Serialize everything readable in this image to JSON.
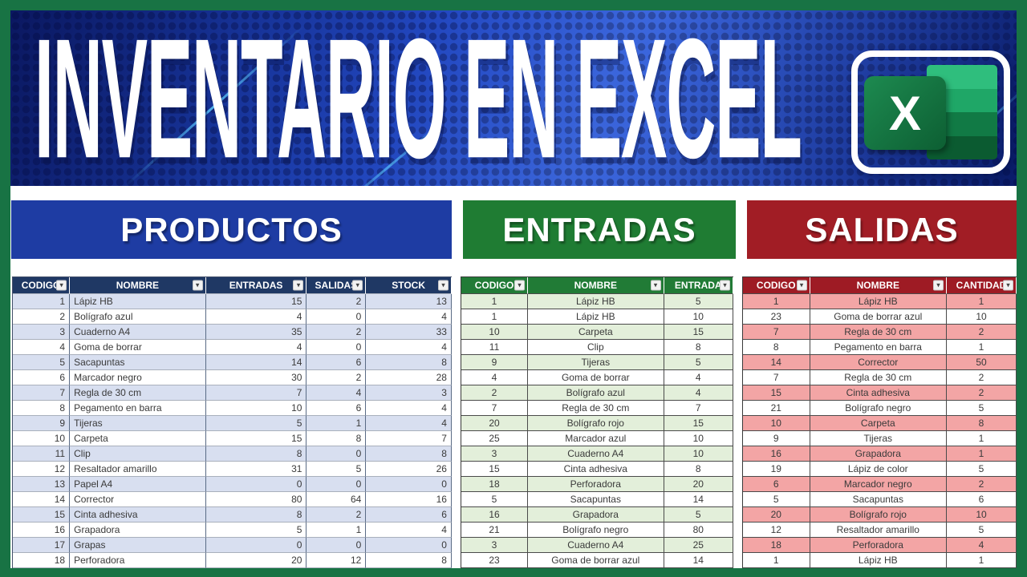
{
  "title": {
    "text": "INVENTARIO EN EXCEL",
    "excel_letter": "X"
  },
  "icons": {
    "filter_dropdown": "▾"
  },
  "colors": {
    "frame_green": "#187344",
    "banner_blue": "#2248c4",
    "products_blue": "#1e3ca3",
    "products_header": "#1f3864",
    "products_band": "#d8dff0",
    "entradas_green": "#1f7c33",
    "entradas_band": "#e3efda",
    "salidas_red": "#a11d25",
    "salidas_band": "#f3a5a5"
  },
  "sections": [
    {
      "id": "productos",
      "banner": "PRODUCTOS",
      "columns": [
        "CODIGO",
        "NOMBRE",
        "ENTRADAS",
        "SALIDAS",
        "STOCK"
      ],
      "rows": [
        [
          1,
          "Lápiz HB",
          15,
          2,
          13
        ],
        [
          2,
          "Bolígrafo azul",
          4,
          0,
          4
        ],
        [
          3,
          "Cuaderno A4",
          35,
          2,
          33
        ],
        [
          4,
          "Goma de borrar",
          4,
          0,
          4
        ],
        [
          5,
          "Sacapuntas",
          14,
          6,
          8
        ],
        [
          6,
          "Marcador negro",
          30,
          2,
          28
        ],
        [
          7,
          "Regla de 30 cm",
          7,
          4,
          3
        ],
        [
          8,
          "Pegamento en barra",
          10,
          6,
          4
        ],
        [
          9,
          "Tijeras",
          5,
          1,
          4
        ],
        [
          10,
          "Carpeta",
          15,
          8,
          7
        ],
        [
          11,
          "Clip",
          8,
          0,
          8
        ],
        [
          12,
          "Resaltador amarillo",
          31,
          5,
          26
        ],
        [
          13,
          "Papel A4",
          0,
          0,
          0
        ],
        [
          14,
          "Corrector",
          80,
          64,
          16
        ],
        [
          15,
          "Cinta adhesiva",
          8,
          2,
          6
        ],
        [
          16,
          "Grapadora",
          5,
          1,
          4
        ],
        [
          17,
          "Grapas",
          0,
          0,
          0
        ],
        [
          18,
          "Perforadora",
          20,
          12,
          8
        ]
      ]
    },
    {
      "id": "entradas",
      "banner": "ENTRADAS",
      "columns": [
        "CODIGO",
        "NOMBRE",
        "ENTRADA"
      ],
      "rows": [
        [
          1,
          "Lápiz HB",
          5
        ],
        [
          1,
          "Lápiz HB",
          10
        ],
        [
          10,
          "Carpeta",
          15
        ],
        [
          11,
          "Clip",
          8
        ],
        [
          9,
          "Tijeras",
          5
        ],
        [
          4,
          "Goma de borrar",
          4
        ],
        [
          2,
          "Bolígrafo azul",
          4
        ],
        [
          7,
          "Regla de 30 cm",
          7
        ],
        [
          20,
          "Bolígrafo rojo",
          15
        ],
        [
          25,
          "Marcador azul",
          10
        ],
        [
          3,
          "Cuaderno A4",
          10
        ],
        [
          15,
          "Cinta adhesiva",
          8
        ],
        [
          18,
          "Perforadora",
          20
        ],
        [
          5,
          "Sacapuntas",
          14
        ],
        [
          16,
          "Grapadora",
          5
        ],
        [
          21,
          "Bolígrafo negro",
          80
        ],
        [
          3,
          "Cuaderno A4",
          25
        ],
        [
          23,
          "Goma de borrar azul",
          14
        ]
      ]
    },
    {
      "id": "salidas",
      "banner": "SALIDAS",
      "columns": [
        "CODIGO",
        "NOMBRE",
        "CANTIDAD"
      ],
      "rows": [
        [
          1,
          "Lápiz HB",
          1
        ],
        [
          23,
          "Goma de borrar azul",
          10
        ],
        [
          7,
          "Regla de 30 cm",
          2
        ],
        [
          8,
          "Pegamento en barra",
          1
        ],
        [
          14,
          "Corrector",
          50
        ],
        [
          7,
          "Regla de 30 cm",
          2
        ],
        [
          15,
          "Cinta adhesiva",
          2
        ],
        [
          21,
          "Bolígrafo negro",
          5
        ],
        [
          10,
          "Carpeta",
          8
        ],
        [
          9,
          "Tijeras",
          1
        ],
        [
          16,
          "Grapadora",
          1
        ],
        [
          19,
          "Lápiz de color",
          5
        ],
        [
          6,
          "Marcador negro",
          2
        ],
        [
          5,
          "Sacapuntas",
          6
        ],
        [
          20,
          "Bolígrafo rojo",
          10
        ],
        [
          12,
          "Resaltador amarillo",
          5
        ],
        [
          18,
          "Perforadora",
          4
        ],
        [
          1,
          "Lápiz HB",
          1
        ]
      ]
    }
  ]
}
